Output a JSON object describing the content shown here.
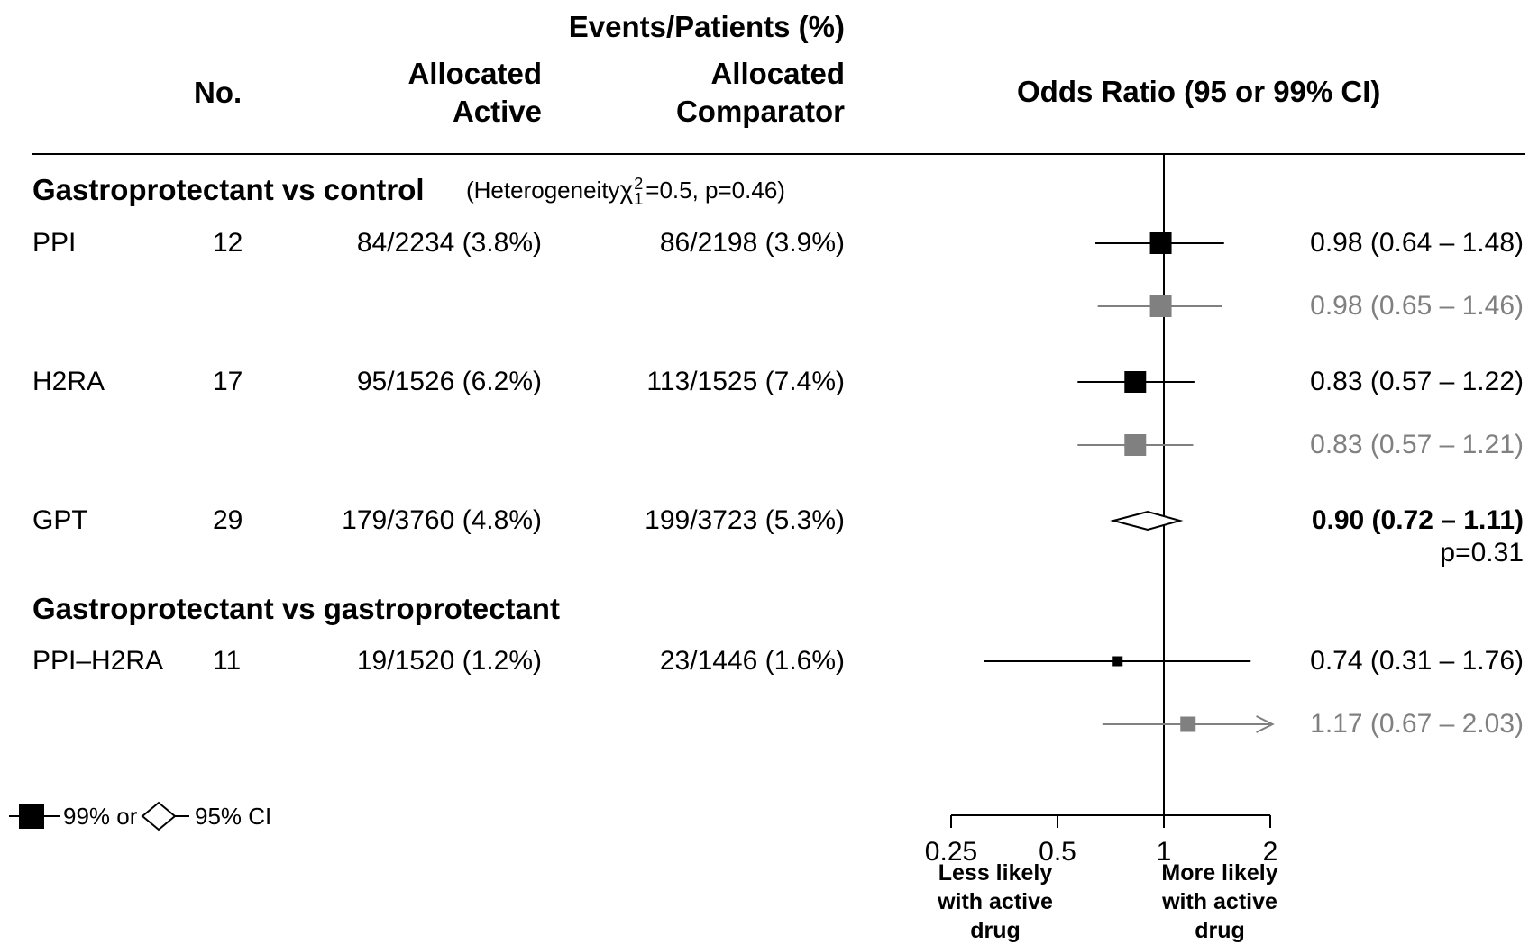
{
  "chart_data": {
    "type": "forest",
    "header": {
      "events_patients": "Events/Patients (%)",
      "no": "No.",
      "active_line1": "Allocated",
      "active_line2": "Active",
      "comparator_line1": "Allocated",
      "comparator_line2": "Comparator",
      "odds_ratio": "Odds Ratio (95 or 99% CI)"
    },
    "sections": [
      {
        "title": "Gastroprotectant vs control",
        "heterogeneity": "(Heterogeneity",
        "chi_symbol": "χ",
        "chi_sup": "2",
        "chi_sub": "1",
        "heterogeneity_rest": "=0.5,  p=0.46)"
      },
      {
        "title": "Gastroprotectant vs gastroprotectant"
      }
    ],
    "rows": [
      {
        "label": "PPI",
        "n": "12",
        "active": "84/2234 (3.8%)",
        "comparator": "86/2198 (3.9%)",
        "or": 0.98,
        "lo": 0.64,
        "hi": 1.48,
        "text": "0.98 (0.64 – 1.48)",
        "style": "black",
        "box": 24
      },
      {
        "label": "",
        "n": "",
        "active": "",
        "comparator": "",
        "or": 0.98,
        "lo": 0.65,
        "hi": 1.46,
        "text": "0.98 (0.65 – 1.46)",
        "style": "grey",
        "box": 24
      },
      {
        "label": "H2RA",
        "n": "17",
        "active": "95/1526 (6.2%)",
        "comparator": "113/1525 (7.4%)",
        "or": 0.83,
        "lo": 0.57,
        "hi": 1.22,
        "text": "0.83 (0.57 – 1.22)",
        "style": "black",
        "box": 24
      },
      {
        "label": "",
        "n": "",
        "active": "",
        "comparator": "",
        "or": 0.83,
        "lo": 0.57,
        "hi": 1.21,
        "text": "0.83 (0.57 – 1.21)",
        "style": "grey",
        "box": 24
      },
      {
        "label": "GPT",
        "n": "29",
        "active": "179/3760 (4.8%)",
        "comparator": "199/3723 (5.3%)",
        "or": 0.9,
        "lo": 0.72,
        "hi": 1.11,
        "text": "0.90 (0.72 – 1.11)",
        "p": "p=0.31",
        "style": "diamond"
      },
      {
        "label": "PPI–H2RA",
        "n": "11",
        "active": "19/1520 (1.2%)",
        "comparator": "23/1446 (1.6%)",
        "or": 0.74,
        "lo": 0.31,
        "hi": 1.76,
        "text": "0.74 (0.31 – 1.76)",
        "style": "black",
        "box": 11
      },
      {
        "label": "",
        "n": "",
        "active": "",
        "comparator": "",
        "or": 1.17,
        "lo": 0.67,
        "hi": 2.03,
        "text": "1.17 (0.67 – 2.03)",
        "style": "grey",
        "box": 17,
        "arrow": true
      }
    ],
    "x_axis": {
      "scale": "log",
      "ticks": [
        0.25,
        0.5,
        1,
        2
      ],
      "tick_labels": [
        "0.25",
        "0.5",
        "1",
        "2"
      ],
      "reference": 1,
      "left_label": [
        "Less likely",
        "with active",
        "drug"
      ],
      "right_label": [
        "More likely",
        "with active",
        "drug"
      ]
    },
    "legend": {
      "text1": "99% or",
      "text2": "95% CI"
    }
  }
}
